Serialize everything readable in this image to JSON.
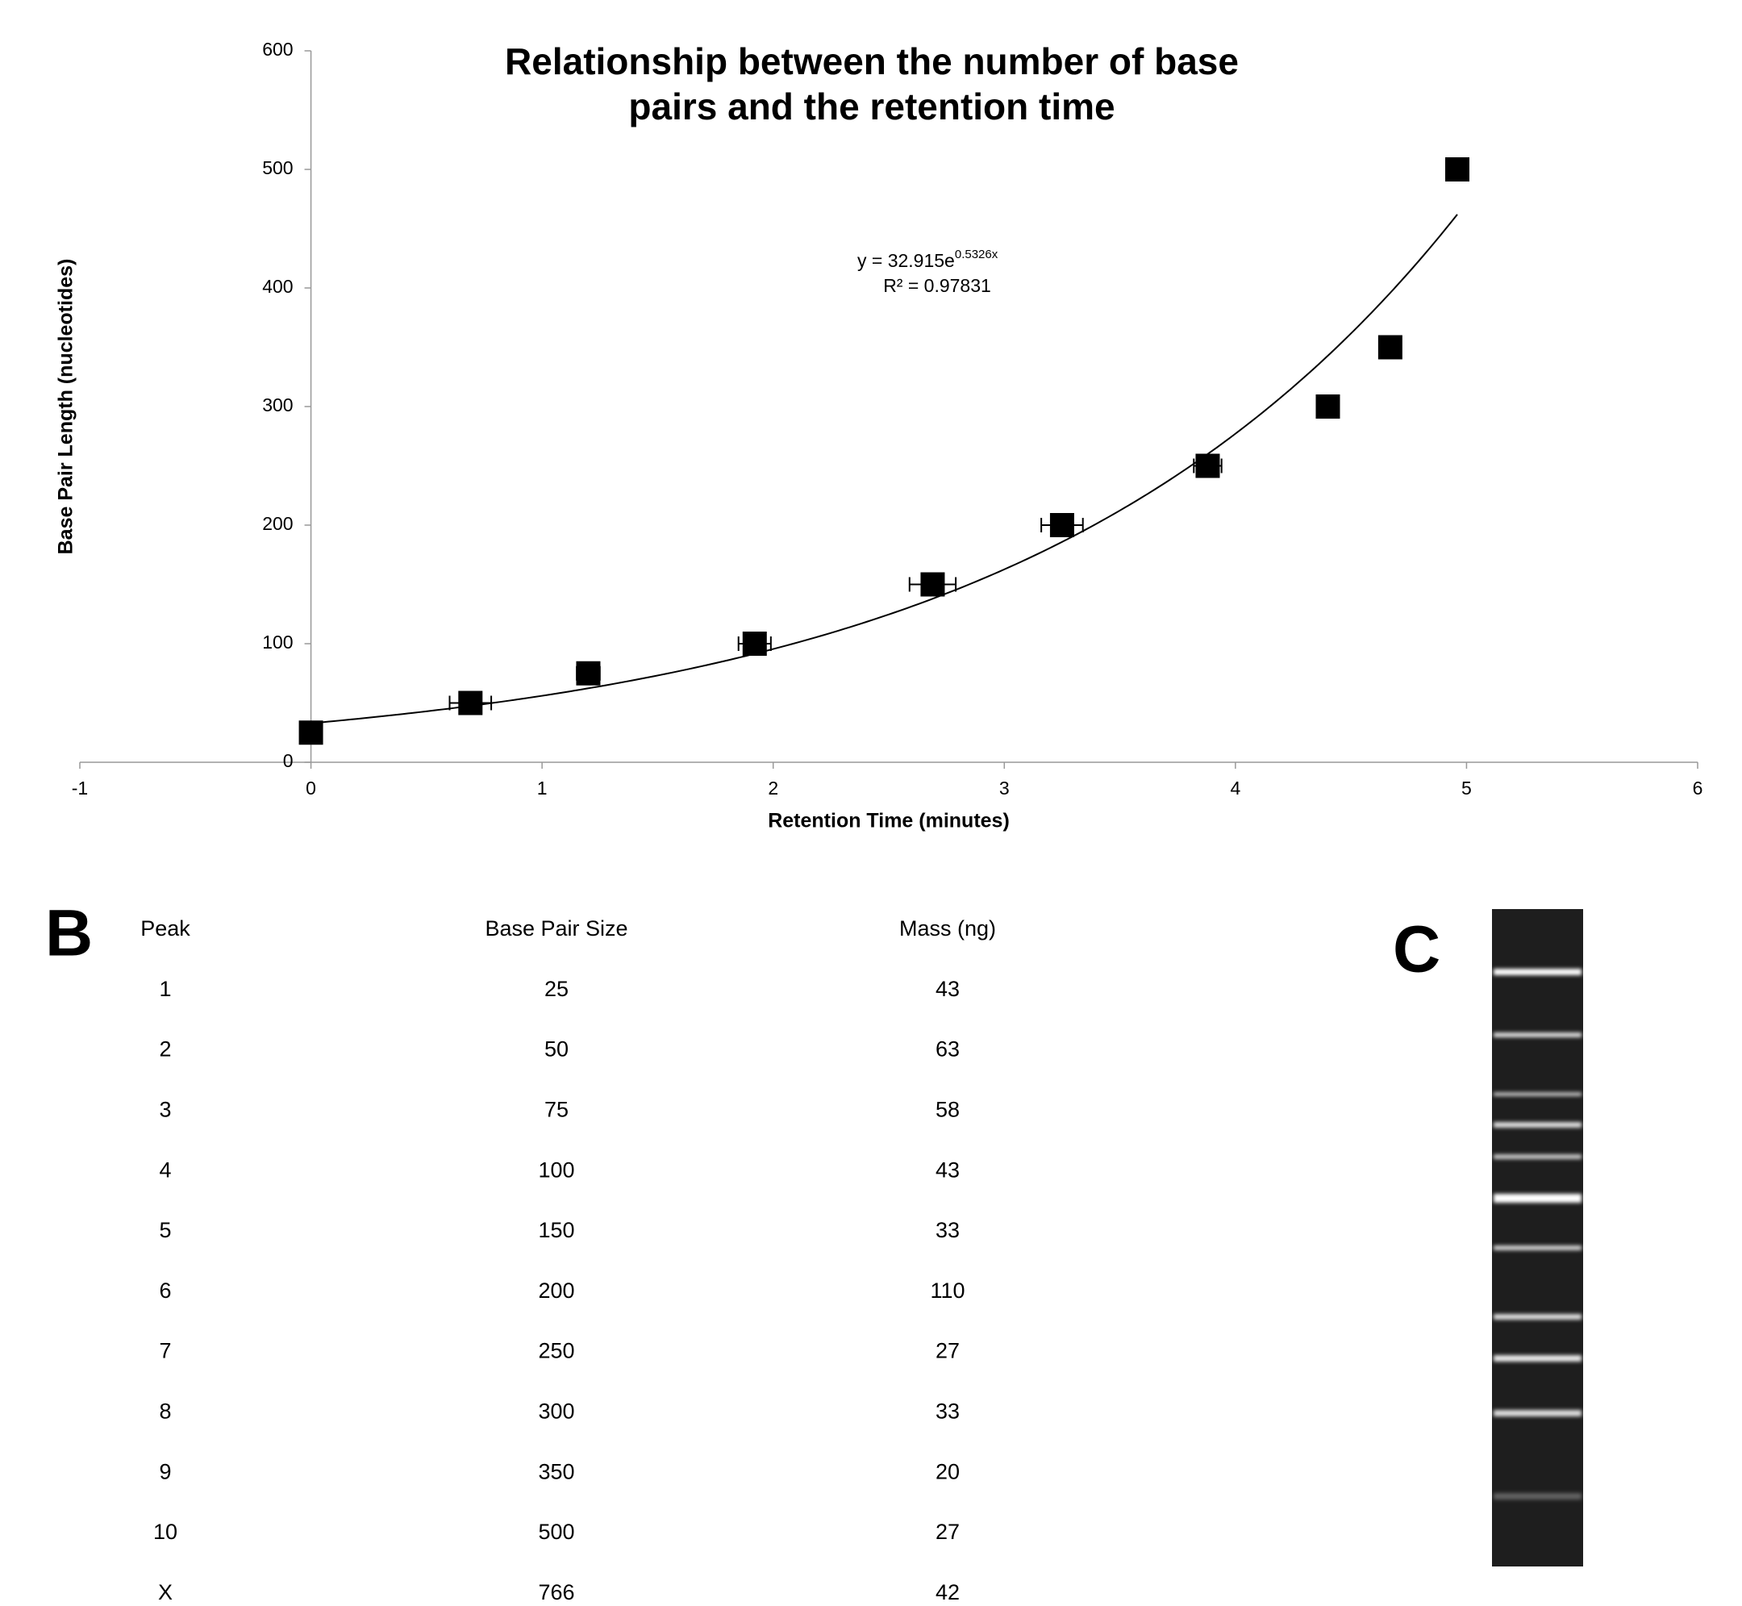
{
  "chart_data": {
    "type": "scatter",
    "title": [
      "Relationship between the number of base",
      "pairs and the retention time"
    ],
    "x_label": "Retention Time (minutes)",
    "y_label": "Base Pair Length (nucleotides)",
    "x": [
      0,
      0.69,
      1.2,
      1.92,
      2.69,
      3.25,
      3.88,
      4.4,
      4.67,
      4.96
    ],
    "x_errors": [
      0,
      0.09,
      0.05,
      0.07,
      0.1,
      0.09,
      0.06,
      0,
      0,
      0
    ],
    "values": [
      25,
      50,
      75,
      100,
      150,
      200,
      250,
      300,
      350,
      500
    ],
    "color": "#000000",
    "xlim": [
      -1,
      6
    ],
    "xticks": [
      -1,
      0,
      1,
      2,
      3,
      4,
      5,
      6
    ],
    "ylim": [
      0,
      600
    ],
    "yticks": [
      0,
      100,
      200,
      300,
      400,
      500,
      600
    ],
    "grid": false,
    "trendline": {
      "equation": "y = 32.915e",
      "exponent": "0.5326x",
      "r_squared": "R² = 0.97831",
      "coefficient": 32.915,
      "rate": 0.5326
    }
  },
  "table": {
    "label": "B",
    "header": [
      "Peak",
      "Base Pair Size",
      "Mass (ng)"
    ],
    "rows": [
      [
        1,
        25,
        43
      ],
      [
        2,
        50,
        63
      ],
      [
        3,
        75,
        58
      ],
      [
        4,
        100,
        43
      ],
      [
        5,
        150,
        33
      ],
      [
        6,
        200,
        110
      ],
      [
        7,
        250,
        27
      ],
      [
        8,
        300,
        33
      ],
      [
        9,
        350,
        20
      ],
      [
        10,
        500,
        27
      ],
      [
        "X",
        766,
        42
      ]
    ]
  },
  "gel": {
    "label": "C"
  }
}
